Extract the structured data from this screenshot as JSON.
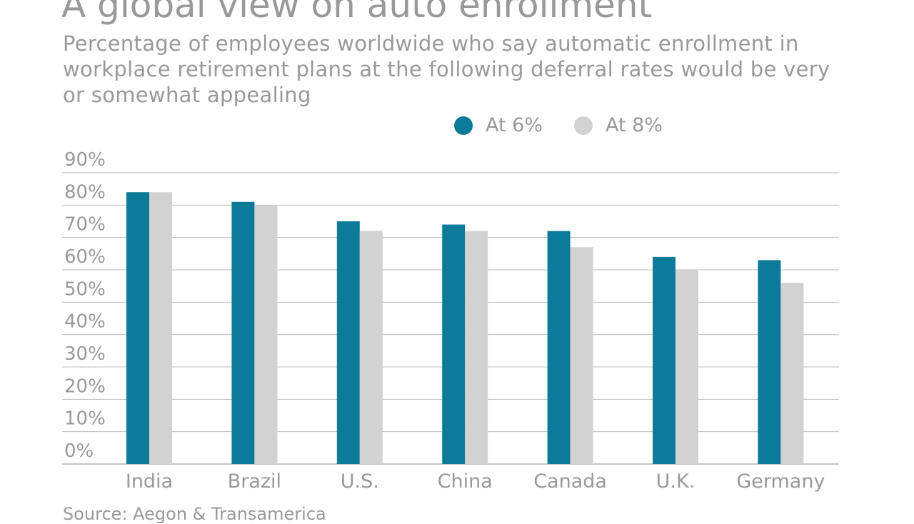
{
  "chart_data": {
    "type": "bar",
    "title": "A global view on auto enrollment",
    "subtitle": "Percentage of employees worldwide who say automatic enrollment in workplace retirement plans at the following deferral rates would be very or somewhat appealing",
    "categories": [
      "India",
      "Brazil",
      "U.S.",
      "China",
      "Canada",
      "U.K.",
      "Germany"
    ],
    "series": [
      {
        "name": "At 6%",
        "color": "#0c7a99",
        "values": [
          84,
          81,
          75,
          74,
          72,
          64,
          63
        ]
      },
      {
        "name": "At 8%",
        "color": "#d3d2d3",
        "values": [
          84,
          80,
          72,
          72,
          67,
          60,
          56
        ]
      }
    ],
    "ylim": [
      0,
      90
    ],
    "yticks": [
      "0%",
      "10%",
      "20%",
      "30%",
      "40%",
      "50%",
      "60%",
      "70%",
      "80%",
      "90%"
    ],
    "grid": true,
    "legend_position": "top-right",
    "source": "Source: Aegon & Transamerica"
  }
}
